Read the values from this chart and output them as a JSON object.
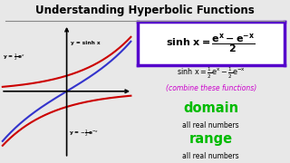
{
  "title": "Understanding Hyperbolic Functions",
  "title_fontsize": 8.5,
  "bg_color": "#e8e8e8",
  "graph_xlim": [
    -1.3,
    1.3
  ],
  "graph_ylim": [
    -2.2,
    2.2
  ],
  "color_red": "#cc0000",
  "color_blue": "#3333cc",
  "color_sinh": "#6600aa",
  "label_half_ex": "y = $\\frac{1}{2}$e$^x$",
  "label_sinh": "y = sinh x",
  "label_neg_half_enx": "y = $-\\frac{1}{2}$e$^{-x}$",
  "combine_text": "(combine these functions)",
  "domain_label": "domain",
  "domain_sub": "all real numbers",
  "range_label": "range",
  "range_sub": "all real numbers",
  "green_color": "#00bb00",
  "magenta_color": "#cc00cc",
  "box_edge_color": "#5500cc",
  "box_bg": "#ffffff",
  "separator_color": "#999999"
}
